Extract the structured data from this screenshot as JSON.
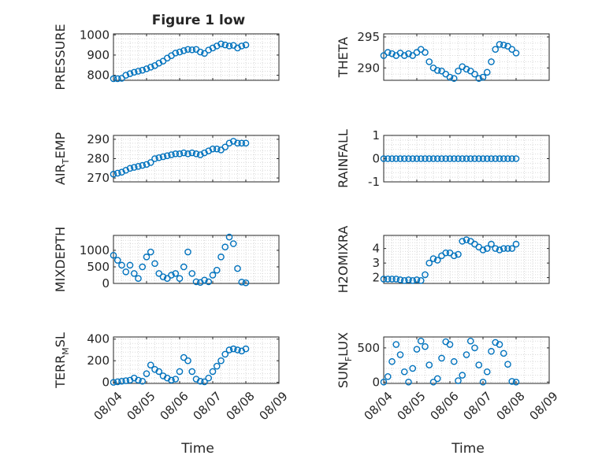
{
  "figure": {
    "title": "Figure 1 low",
    "xlabel": "Time",
    "x_tick_labels": [
      "08/04",
      "08/05",
      "08/06",
      "08/07",
      "08/08",
      "08/09"
    ]
  },
  "colors": {
    "marker": "#0072bd",
    "axes": "#262626",
    "grid": "#d9d9d9"
  },
  "chart_data": [
    {
      "type": "scatter",
      "panel": "PRESSURE",
      "ylabel": "PRESSURE",
      "ylabel_sub": "",
      "ylim": [
        775,
        1005
      ],
      "yticks": [
        800,
        900,
        1000
      ],
      "xlim": [
        0,
        5
      ],
      "grid": true,
      "x": [
        0.0,
        0.125,
        0.25,
        0.375,
        0.5,
        0.625,
        0.75,
        0.875,
        1.0,
        1.125,
        1.25,
        1.375,
        1.5,
        1.625,
        1.75,
        1.875,
        2.0,
        2.125,
        2.25,
        2.375,
        2.5,
        2.625,
        2.75,
        2.875,
        3.0,
        3.125,
        3.25,
        3.375,
        3.5,
        3.625,
        3.75,
        3.875,
        4.0
      ],
      "y": [
        783,
        783,
        785,
        800,
        808,
        815,
        820,
        825,
        832,
        840,
        848,
        860,
        870,
        885,
        897,
        910,
        915,
        922,
        928,
        926,
        928,
        915,
        908,
        925,
        935,
        945,
        955,
        950,
        945,
        948,
        935,
        945,
        950
      ]
    },
    {
      "type": "scatter",
      "panel": "THETA",
      "ylabel": "THETA",
      "ylabel_sub": "",
      "ylim": [
        288,
        295.5
      ],
      "yticks": [
        290,
        295
      ],
      "xlim": [
        0,
        5
      ],
      "grid": true,
      "x": [
        0.0,
        0.125,
        0.25,
        0.375,
        0.5,
        0.625,
        0.75,
        0.875,
        1.0,
        1.125,
        1.25,
        1.375,
        1.5,
        1.625,
        1.75,
        1.875,
        2.0,
        2.125,
        2.25,
        2.375,
        2.5,
        2.625,
        2.75,
        2.875,
        3.0,
        3.125,
        3.25,
        3.375,
        3.5,
        3.625,
        3.75,
        3.875,
        4.0
      ],
      "y": [
        292.0,
        292.5,
        292.3,
        292.0,
        292.4,
        292.0,
        292.3,
        292.0,
        292.5,
        293.0,
        292.5,
        291.0,
        290.0,
        289.6,
        289.5,
        289.0,
        288.5,
        288.3,
        289.5,
        290.2,
        289.8,
        289.5,
        289.0,
        288.3,
        288.5,
        289.3,
        291.0,
        293.0,
        293.8,
        293.7,
        293.5,
        293.0,
        292.4
      ]
    },
    {
      "type": "scatter",
      "panel": "AIR_TEMP",
      "ylabel": "AIR",
      "ylabel_sub": "T",
      "ylabel_rest": "EMP",
      "ylim": [
        268,
        292
      ],
      "yticks": [
        270,
        280,
        290
      ],
      "xlim": [
        0,
        5
      ],
      "grid": true,
      "x": [
        0.0,
        0.125,
        0.25,
        0.375,
        0.5,
        0.625,
        0.75,
        0.875,
        1.0,
        1.125,
        1.25,
        1.375,
        1.5,
        1.625,
        1.75,
        1.875,
        2.0,
        2.125,
        2.25,
        2.375,
        2.5,
        2.625,
        2.75,
        2.875,
        3.0,
        3.125,
        3.25,
        3.375,
        3.5,
        3.625,
        3.75,
        3.875,
        4.0
      ],
      "y": [
        272,
        272.5,
        273,
        274,
        275,
        275.5,
        276,
        276.5,
        277,
        278,
        280,
        280.5,
        281,
        281.5,
        282,
        282.5,
        282.5,
        283,
        282.5,
        283,
        282.5,
        282,
        283,
        284,
        285,
        285,
        284.5,
        286,
        288,
        289,
        288,
        288,
        288
      ]
    },
    {
      "type": "scatter",
      "panel": "RAINFALL",
      "ylabel": "RAINFALL",
      "ylabel_sub": "",
      "ylim": [
        -1,
        1
      ],
      "yticks": [
        -1,
        0,
        1
      ],
      "xlim": [
        0,
        5
      ],
      "grid": true,
      "x": [
        0.0,
        0.125,
        0.25,
        0.375,
        0.5,
        0.625,
        0.75,
        0.875,
        1.0,
        1.125,
        1.25,
        1.375,
        1.5,
        1.625,
        1.75,
        1.875,
        2.0,
        2.125,
        2.25,
        2.375,
        2.5,
        2.625,
        2.75,
        2.875,
        3.0,
        3.125,
        3.25,
        3.375,
        3.5,
        3.625,
        3.75,
        3.875,
        4.0
      ],
      "y": [
        0,
        0,
        0,
        0,
        0,
        0,
        0,
        0,
        0,
        0,
        0,
        0,
        0,
        0,
        0,
        0,
        0,
        0,
        0,
        0,
        0,
        0,
        0,
        0,
        0,
        0,
        0,
        0,
        0,
        0,
        0,
        0,
        0
      ]
    },
    {
      "type": "scatter",
      "panel": "MIXDEPTH",
      "ylabel": "MIXDEPTH",
      "ylabel_sub": "",
      "ylim": [
        0,
        1450
      ],
      "yticks": [
        0,
        500,
        1000
      ],
      "xlim": [
        0,
        5
      ],
      "grid": true,
      "x": [
        0.0,
        0.125,
        0.25,
        0.375,
        0.5,
        0.625,
        0.75,
        0.875,
        1.0,
        1.125,
        1.25,
        1.375,
        1.5,
        1.625,
        1.75,
        1.875,
        2.0,
        2.125,
        2.25,
        2.375,
        2.5,
        2.625,
        2.75,
        2.875,
        3.0,
        3.125,
        3.25,
        3.375,
        3.5,
        3.625,
        3.75,
        3.875,
        4.0
      ],
      "y": [
        850,
        700,
        550,
        350,
        550,
        300,
        150,
        500,
        800,
        950,
        600,
        300,
        200,
        150,
        250,
        300,
        150,
        500,
        950,
        300,
        50,
        30,
        100,
        50,
        250,
        400,
        800,
        1100,
        1400,
        1200,
        450,
        40,
        20
      ]
    },
    {
      "type": "scatter",
      "panel": "H2OMIXRA",
      "ylabel": "H2OMIXRA",
      "ylabel_sub": "",
      "ylim": [
        1.6,
        4.9
      ],
      "yticks": [
        2,
        3,
        4
      ],
      "xlim": [
        0,
        5
      ],
      "grid": true,
      "x": [
        0.0,
        0.125,
        0.25,
        0.375,
        0.5,
        0.625,
        0.75,
        0.875,
        1.0,
        1.125,
        1.25,
        1.375,
        1.5,
        1.625,
        1.75,
        1.875,
        2.0,
        2.125,
        2.25,
        2.375,
        2.5,
        2.625,
        2.75,
        2.875,
        3.0,
        3.125,
        3.25,
        3.375,
        3.5,
        3.625,
        3.75,
        3.875,
        4.0
      ],
      "y": [
        1.9,
        1.9,
        1.9,
        1.9,
        1.85,
        1.8,
        1.85,
        1.8,
        1.85,
        1.8,
        2.2,
        3.0,
        3.3,
        3.2,
        3.5,
        3.7,
        3.7,
        3.5,
        3.6,
        4.5,
        4.6,
        4.5,
        4.3,
        4.1,
        3.9,
        4.0,
        4.3,
        4.0,
        3.9,
        4.0,
        4.0,
        4.0,
        4.3
      ]
    },
    {
      "type": "scatter",
      "panel": "TERR_MSL",
      "ylabel": "TERR",
      "ylabel_sub": "M",
      "ylabel_rest": "SL",
      "ylim": [
        -10,
        420
      ],
      "yticks": [
        0,
        200,
        400
      ],
      "xlim": [
        0,
        5
      ],
      "grid": true,
      "x": [
        0.0,
        0.125,
        0.25,
        0.375,
        0.5,
        0.625,
        0.75,
        0.875,
        1.0,
        1.125,
        1.25,
        1.375,
        1.5,
        1.625,
        1.75,
        1.875,
        2.0,
        2.125,
        2.25,
        2.375,
        2.5,
        2.625,
        2.75,
        2.875,
        3.0,
        3.125,
        3.25,
        3.375,
        3.5,
        3.625,
        3.75,
        3.875,
        4.0
      ],
      "y": [
        0,
        5,
        10,
        15,
        20,
        40,
        20,
        10,
        80,
        160,
        120,
        100,
        60,
        40,
        20,
        30,
        100,
        230,
        200,
        100,
        30,
        10,
        5,
        40,
        100,
        150,
        200,
        260,
        300,
        310,
        300,
        290,
        310
      ]
    },
    {
      "type": "scatter",
      "panel": "SUN_FLUX",
      "ylabel": "SUN",
      "ylabel_sub": "F",
      "ylabel_rest": "LUX",
      "ylim": [
        -20,
        660
      ],
      "yticks": [
        0,
        500
      ],
      "xlim": [
        0,
        5
      ],
      "grid": true,
      "x": [
        0.0,
        0.125,
        0.25,
        0.375,
        0.5,
        0.625,
        0.75,
        0.875,
        1.0,
        1.125,
        1.25,
        1.375,
        1.5,
        1.625,
        1.75,
        1.875,
        2.0,
        2.125,
        2.25,
        2.375,
        2.5,
        2.625,
        2.75,
        2.875,
        3.0,
        3.125,
        3.25,
        3.375,
        3.5,
        3.625,
        3.75,
        3.875,
        4.0
      ],
      "y": [
        0,
        80,
        300,
        550,
        400,
        150,
        0,
        200,
        480,
        600,
        520,
        250,
        0,
        50,
        350,
        590,
        550,
        300,
        20,
        100,
        400,
        600,
        500,
        250,
        0,
        150,
        450,
        580,
        550,
        420,
        260,
        10,
        0
      ]
    }
  ]
}
